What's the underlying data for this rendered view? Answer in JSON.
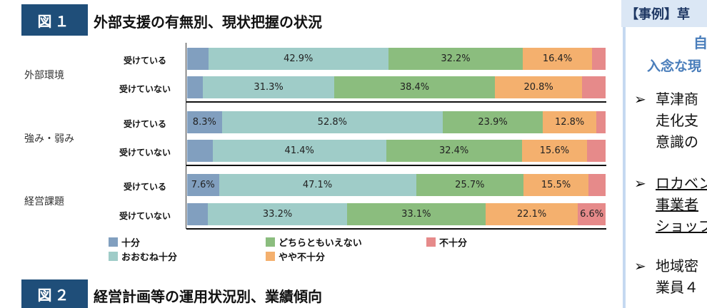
{
  "fig1": {
    "badge": "図１",
    "title": "外部支援の有無別、現状把握の状況"
  },
  "fig2": {
    "badge": "図２",
    "title": "経営計画等の運用状況別、業績傾向"
  },
  "chart_data": {
    "type": "bar",
    "orientation": "horizontal",
    "stacked": "100%",
    "groups": [
      {
        "name": "外部環境",
        "rows": [
          {
            "label": "受けている",
            "values": [
              5.1,
              42.9,
              32.2,
              16.4,
              3.3
            ],
            "labels": [
              null,
              "42.9%",
              "32.2%",
              "16.4%",
              null
            ]
          },
          {
            "label": "受けていない",
            "values": [
              3.8,
              31.3,
              38.4,
              20.8,
              5.6
            ],
            "labels": [
              null,
              "31.3%",
              "38.4%",
              "20.8%",
              null
            ]
          }
        ]
      },
      {
        "name": "強み・弱み",
        "rows": [
          {
            "label": "受けている",
            "values": [
              8.3,
              52.8,
              23.9,
              12.8,
              2.2
            ],
            "labels": [
              "8.3%",
              "52.8%",
              "23.9%",
              "12.8%",
              null
            ]
          },
          {
            "label": "受けていない",
            "values": [
              6.1,
              41.4,
              32.4,
              15.6,
              4.4
            ],
            "labels": [
              null,
              "41.4%",
              "32.4%",
              "15.6%",
              null
            ]
          }
        ]
      },
      {
        "name": "経営課題",
        "rows": [
          {
            "label": "受けている",
            "values": [
              7.6,
              47.1,
              25.7,
              15.5,
              4.1
            ],
            "labels": [
              "7.6%",
              "47.1%",
              "25.7%",
              "15.5%",
              null
            ]
          },
          {
            "label": "受けていない",
            "values": [
              5.0,
              33.2,
              33.1,
              22.1,
              6.6
            ],
            "labels": [
              null,
              "33.2%",
              "33.1%",
              "22.1%",
              "6.6%"
            ]
          }
        ]
      }
    ],
    "series": [
      {
        "name": "十分",
        "color": "#819fbf"
      },
      {
        "name": "おおむね十分",
        "color": "#9fccc8"
      },
      {
        "name": "どちらともいえない",
        "color": "#8bbd7e"
      },
      {
        "name": "やや不十分",
        "color": "#f4b06e"
      },
      {
        "name": "不十分",
        "color": "#e68a8a"
      }
    ],
    "xlim": [
      0,
      100
    ],
    "legend": "bottom"
  },
  "right_panel": {
    "header": "【事例】草",
    "heading1": "自",
    "heading2": "入念な現",
    "bullets": [
      {
        "lines": [
          "草津商",
          "走化支",
          "意識の"
        ],
        "underline": false
      },
      {
        "lines": [
          "ロカベン",
          "事業者",
          "ショップ"
        ],
        "underline": true
      },
      {
        "lines": [
          "地域密",
          "業員４"
        ],
        "underline": false
      }
    ],
    "bullet_icon": "arrowhead-bullet-icon"
  }
}
